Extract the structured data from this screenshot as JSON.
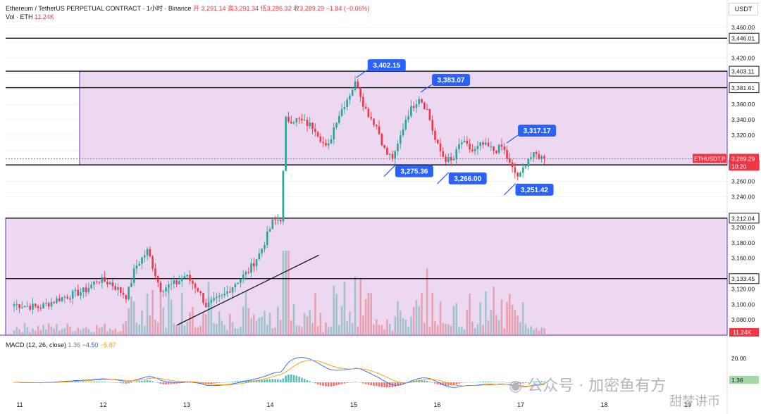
{
  "header": {
    "symbol": "Ethereum / TetherUS PERPETUAL CONTRACT · 1小时 · Binance",
    "ohlc_label": "开",
    "ohlc_values": "3,291.14  高3,291.34  低3,286.32  收3,289.29  −1.84 (−0.06%)",
    "vol_label": "Vol · ETH",
    "vol_value": "11.24K",
    "currency": "USDT"
  },
  "macd_header": {
    "label": "MACD (12, 26, close)",
    "hist": "1.36",
    "macd": "−4.50",
    "signal": "−5.87"
  },
  "watermark": {
    "line1": "公众号 · 加密鱼有方",
    "line2": "甜梦讲币"
  },
  "colors": {
    "up": "#26a69a",
    "down": "#f23645",
    "callout": "#2962ff",
    "zone": "#7e57c2",
    "zone_fill": "#e9d2ef"
  },
  "chart_data": {
    "type": "candlestick",
    "title": "Ethereum / TetherUS PERPETUAL CONTRACT 1H",
    "x_range": [
      "11",
      "19"
    ],
    "x_ticks": [
      {
        "label": "11",
        "x": 11.0
      },
      {
        "label": "12",
        "x": 12.0
      },
      {
        "label": "13",
        "x": 13.0
      },
      {
        "label": "14",
        "x": 14.0
      },
      {
        "label": "15",
        "x": 15.0
      },
      {
        "label": "16",
        "x": 16.0
      },
      {
        "label": "17",
        "x": 17.0
      },
      {
        "label": "18",
        "x": 18.0
      },
      {
        "label": "19",
        "x": 19.0
      }
    ],
    "ylim": [
      3060,
      3470
    ],
    "y_ticks": [
      "3,080.00",
      "3,100.00",
      "3,120.00",
      "3,140.00",
      "3,160.00",
      "3,180.00",
      "3,200.00",
      "3,220.00",
      "3,240.00",
      "3,260.00",
      "3,280.00",
      "3,300.00",
      "3,320.00",
      "3,340.00",
      "3,360.00",
      "3,380.00",
      "3,400.00",
      "3,420.00",
      "3,440.00",
      "3,460.00"
    ],
    "price_levels": [
      {
        "label": "3,446.01",
        "value": 3446.01
      },
      {
        "label": "3,403.11",
        "value": 3403.11
      },
      {
        "label": "3,381.61",
        "value": 3381.61
      },
      {
        "label": "3,281.30",
        "value": 3281.3
      },
      {
        "label": "3,212.04",
        "value": 3212.04
      },
      {
        "label": "3,133.45",
        "value": 3133.45
      }
    ],
    "zones": [
      {
        "top": 3403.11,
        "bottom": 3281.3,
        "from": 11.85
      },
      {
        "top": 3212.04,
        "bottom": 3060,
        "from": 11.0
      }
    ],
    "last_price": {
      "symbol": "ETHUSDT.P",
      "label": "3,289.29",
      "value": 3289.29,
      "countdown": "10:20"
    },
    "volume_badge": "11.24K",
    "callouts": [
      {
        "label": "3,402.15",
        "value": 3402.15,
        "x": 15.15
      },
      {
        "label": "3,383.07",
        "value": 3383.07,
        "x": 15.92
      },
      {
        "label": "3,275.36",
        "value": 3275.36,
        "x": 15.48
      },
      {
        "label": "3,266.00",
        "value": 3266.0,
        "x": 16.12
      },
      {
        "label": "3,317.17",
        "value": 3317.17,
        "x": 16.95
      },
      {
        "label": "3,251.42",
        "value": 3251.42,
        "x": 16.92
      }
    ],
    "trendline": {
      "from": [
        12.95,
        3073
      ],
      "to": [
        14.65,
        3164
      ]
    },
    "macd_ticks": [
      {
        "label": "20.00",
        "value": 20
      },
      {
        "label": "1.36",
        "value": 1.36
      }
    ],
    "anchors": [
      [
        11.0,
        3100
      ],
      [
        11.3,
        3096
      ],
      [
        11.55,
        3108
      ],
      [
        11.85,
        3118
      ],
      [
        12.0,
        3132
      ],
      [
        12.15,
        3128
      ],
      [
        12.35,
        3110
      ],
      [
        12.45,
        3148
      ],
      [
        12.6,
        3170
      ],
      [
        12.75,
        3120
      ],
      [
        12.95,
        3128
      ],
      [
        13.05,
        3138
      ],
      [
        13.2,
        3120
      ],
      [
        13.3,
        3098
      ],
      [
        13.5,
        3110
      ],
      [
        13.65,
        3128
      ],
      [
        13.8,
        3142
      ],
      [
        13.95,
        3168
      ],
      [
        14.1,
        3208
      ],
      [
        14.2,
        3212
      ],
      [
        14.25,
        3340
      ],
      [
        14.4,
        3340
      ],
      [
        14.6,
        3330
      ],
      [
        14.75,
        3300
      ],
      [
        14.85,
        3338
      ],
      [
        15.0,
        3370
      ],
      [
        15.1,
        3390
      ],
      [
        15.2,
        3355
      ],
      [
        15.35,
        3330
      ],
      [
        15.45,
        3296
      ],
      [
        15.55,
        3290
      ],
      [
        15.7,
        3345
      ],
      [
        15.85,
        3370
      ],
      [
        15.95,
        3352
      ],
      [
        16.05,
        3310
      ],
      [
        16.15,
        3290
      ],
      [
        16.25,
        3285
      ],
      [
        16.35,
        3312
      ],
      [
        16.5,
        3298
      ],
      [
        16.6,
        3308
      ],
      [
        16.75,
        3300
      ],
      [
        16.85,
        3305
      ],
      [
        16.95,
        3278
      ],
      [
        17.05,
        3264
      ],
      [
        17.15,
        3290
      ],
      [
        17.25,
        3294
      ],
      [
        17.35,
        3289.29
      ]
    ]
  }
}
